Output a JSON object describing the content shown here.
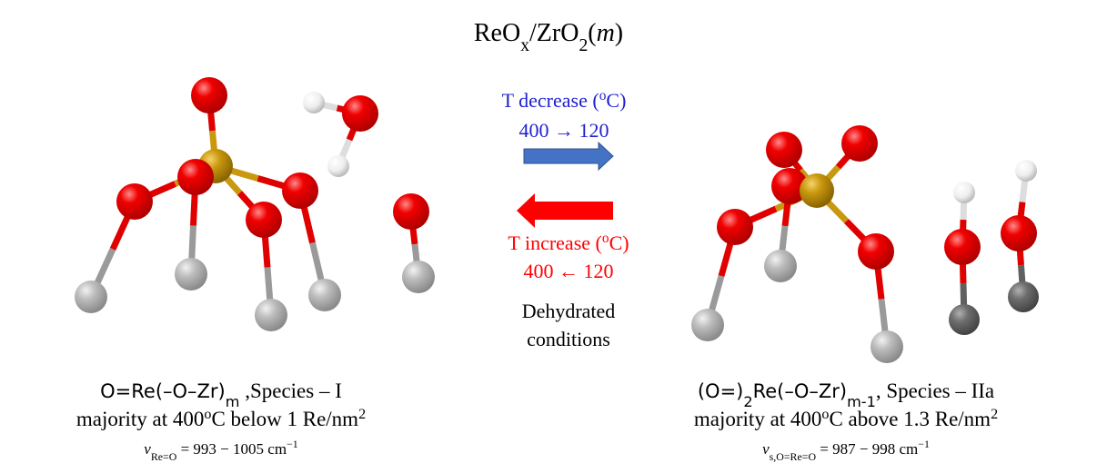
{
  "title": [
    "ReO",
    "x",
    "/ZrO",
    "2",
    "(",
    "m",
    ")"
  ],
  "forward": {
    "label": [
      "T decrease (",
      "o",
      "C)"
    ],
    "values": "400 → 120"
  },
  "reverse": {
    "label": [
      "T increase (",
      "o",
      "C)"
    ],
    "values": "400 ← 120"
  },
  "condition": [
    "Dehydrated",
    "conditions"
  ],
  "species_I": {
    "formula": [
      "O=Re(–O–Zr)",
      "m"
    ],
    "name": " ,Species – I",
    "majority": [
      "majority at 400",
      "o",
      "C below 1 Re/nm",
      "2"
    ],
    "frequency": [
      "ν",
      "Re=O",
      " = 993 − 1005 cm",
      "−1"
    ]
  },
  "species_IIa": {
    "formula": [
      "(O=)",
      "2",
      "Re(–O–Zr)",
      "m-1"
    ],
    "name": ", Species – IIa",
    "majority": [
      "majority at 400",
      "o",
      "C above 1.3 Re/nm",
      "2"
    ],
    "frequency": [
      "ν",
      "s,O=Re=O",
      " = 987 − 998 cm",
      "−1"
    ]
  }
}
